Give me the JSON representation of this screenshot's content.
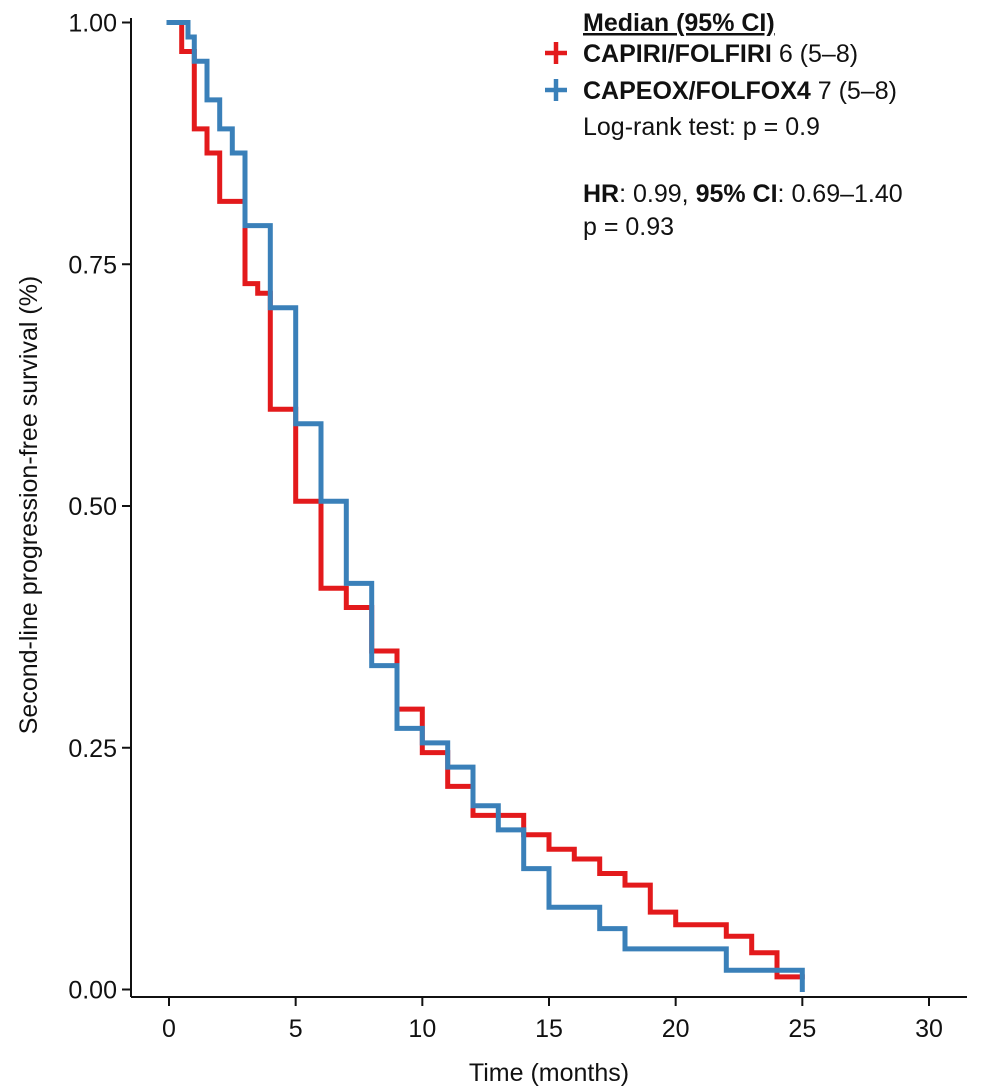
{
  "chart_data": {
    "type": "line",
    "ylabel": "Second-line progression-free survival (%)",
    "xlabel": "Time (months)",
    "xlim": [
      -1.5,
      31.5
    ],
    "ylim": [
      -0.02,
      1.01
    ],
    "x_ticks": [
      0,
      5,
      10,
      15,
      20,
      25,
      30
    ],
    "x_tick_labels": [
      "0",
      "5",
      "10",
      "15",
      "20",
      "25",
      "30"
    ],
    "y_ticks": [
      0,
      0.25,
      0.5,
      0.75,
      1.0
    ],
    "y_tick_labels": [
      "0.00",
      "0.25",
      "0.50",
      "0.75",
      "1.00"
    ],
    "grid": false,
    "legend_position": "top-right",
    "legend": {
      "header": "Median (95% CI)",
      "entries": [
        {
          "name": "CAPIRI/FOLFIRI",
          "stat": " 6 (5–8)",
          "color": "#e31a1c"
        },
        {
          "name": "CAPEOX/FOLFOX4",
          "stat": " 7 (5–8)",
          "color": "#3a80b9"
        }
      ],
      "logrank": "Log-rank test: p = 0.9",
      "hr_label": "HR",
      "hr_value": ": 0.99, ",
      "ci_label": "95% CI",
      "ci_value": ": 0.69–1.40",
      "hr_p": "p = 0.93"
    },
    "series": [
      {
        "name": "CAPIRI/FOLFIRI",
        "color": "#e31a1c",
        "x": [
          0,
          0.5,
          1,
          1.5,
          2,
          3,
          3.5,
          4,
          5,
          6,
          7,
          8,
          9,
          10,
          11,
          12,
          13,
          14,
          15,
          16,
          17,
          18,
          19,
          20,
          22,
          23,
          24,
          25
        ],
        "y": [
          1.0,
          0.97,
          0.89,
          0.865,
          0.815,
          0.73,
          0.72,
          0.6,
          0.505,
          0.415,
          0.395,
          0.35,
          0.29,
          0.245,
          0.21,
          0.18,
          0.18,
          0.16,
          0.145,
          0.135,
          0.12,
          0.108,
          0.08,
          0.067,
          0.055,
          0.038,
          0.013,
          0.013
        ]
      },
      {
        "name": "CAPEOX/FOLFOX4",
        "color": "#3a80b9",
        "x": [
          0,
          0.25,
          0.75,
          1,
          1.5,
          2,
          2.5,
          3,
          4,
          5,
          6,
          7,
          8,
          9,
          10,
          11,
          12,
          13,
          14,
          15,
          17,
          18,
          22,
          25
        ],
        "y": [
          1.0,
          1.0,
          0.985,
          0.96,
          0.92,
          0.89,
          0.865,
          0.79,
          0.705,
          0.585,
          0.505,
          0.42,
          0.335,
          0.27,
          0.255,
          0.23,
          0.19,
          0.165,
          0.125,
          0.085,
          0.063,
          0.042,
          0.02,
          0.0
        ]
      }
    ]
  }
}
